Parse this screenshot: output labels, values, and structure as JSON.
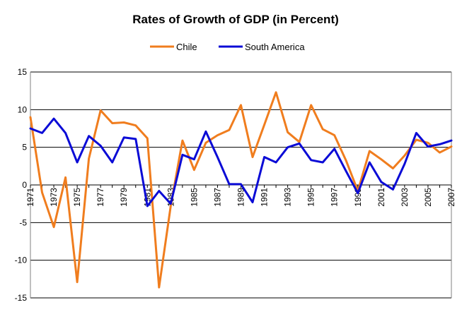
{
  "chart_data": {
    "type": "line",
    "title": "Rates of Growth of GDP (in Percent)",
    "xlabel": "",
    "ylabel": "",
    "x": [
      1971,
      1972,
      1973,
      1974,
      1975,
      1976,
      1977,
      1978,
      1979,
      1980,
      1981,
      1982,
      1983,
      1984,
      1985,
      1986,
      1987,
      1988,
      1989,
      1990,
      1991,
      1992,
      1993,
      1994,
      1995,
      1996,
      1997,
      1998,
      1999,
      2000,
      2001,
      2002,
      2003,
      2004,
      2005,
      2006,
      2007
    ],
    "x_tick_labels": [
      "1971",
      "1973",
      "1975",
      "1977",
      "1979",
      "1981",
      "1983",
      "1985",
      "1987",
      "1989",
      "1991",
      "1993",
      "1995",
      "1997",
      "1999",
      "2001",
      "2003",
      "2005",
      "2007"
    ],
    "ylim": [
      -15,
      15
    ],
    "y_ticks": [
      "15",
      "10",
      "5",
      "0",
      "-5",
      "-10",
      "-15"
    ],
    "grid": true,
    "legend_position": "top",
    "series": [
      {
        "name": "Chile",
        "color": "#f07d1e",
        "values": [
          9.0,
          -1.0,
          -5.6,
          1.0,
          -12.9,
          3.5,
          9.9,
          8.2,
          8.3,
          7.9,
          6.2,
          -13.6,
          -2.8,
          5.9,
          2.0,
          5.6,
          6.6,
          7.3,
          10.6,
          3.7,
          8.0,
          12.3,
          7.0,
          5.7,
          10.6,
          7.4,
          6.6,
          3.2,
          -0.8,
          4.5,
          3.4,
          2.2,
          3.9,
          6.0,
          5.6,
          4.3,
          5.1
        ]
      },
      {
        "name": "South America",
        "color": "#0b0bd6",
        "values": [
          7.5,
          6.9,
          8.8,
          6.9,
          3.0,
          6.5,
          5.2,
          3.0,
          6.3,
          6.1,
          -2.8,
          -0.8,
          -2.5,
          4.0,
          3.4,
          7.1,
          3.7,
          0.1,
          0.1,
          -2.3,
          3.7,
          3.0,
          5.0,
          5.5,
          3.3,
          3.0,
          4.8,
          1.8,
          -1.1,
          3.0,
          0.4,
          -0.6,
          2.8,
          6.9,
          5.1,
          5.4,
          5.9
        ]
      }
    ]
  }
}
